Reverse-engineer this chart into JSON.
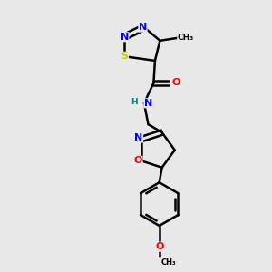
{
  "background_color": "#e8e8e8",
  "bond_color": "#000000",
  "bond_width": 1.8,
  "atom_colors": {
    "N": "#0000ff",
    "O": "#ff0000",
    "S": "#cccc00",
    "H": "#008080",
    "C": "#000000"
  },
  "font_size": 8.0
}
